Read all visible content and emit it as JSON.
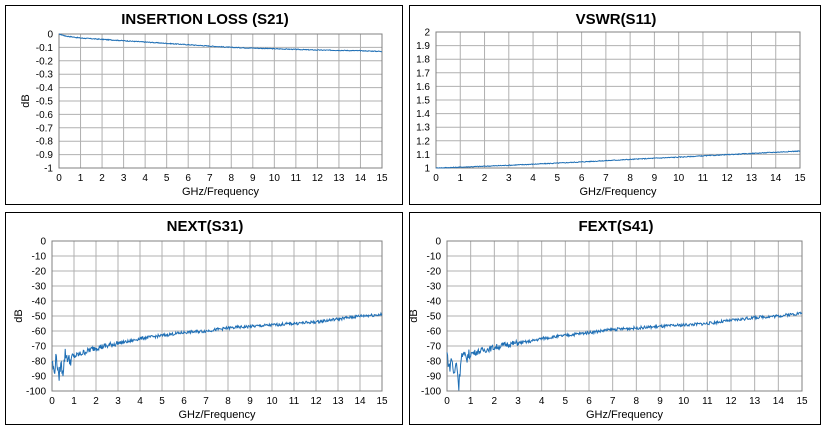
{
  "chart_data": [
    {
      "type": "line",
      "title": "INSERTION LOSS (S21)",
      "xlabel": "GHz/Frequency",
      "ylabel": "dB",
      "xlim": [
        0,
        15
      ],
      "ylim": [
        -1,
        0
      ],
      "xticks": [
        "0",
        "1",
        "2",
        "3",
        "4",
        "5",
        "6",
        "7",
        "8",
        "9",
        "10",
        "11",
        "12",
        "13",
        "14",
        "15"
      ],
      "yticks": [
        "0",
        "-0.1",
        "-0.2",
        "-0.3",
        "-0.4",
        "-0.5",
        "-0.6",
        "-0.7",
        "-0.8",
        "-0.9",
        "-1"
      ],
      "grid": true,
      "color": "#1f6fb5",
      "series": [
        {
          "x": [
            0,
            0.3,
            1,
            2,
            3,
            4,
            5,
            6,
            7,
            8,
            9,
            10,
            11,
            12,
            13,
            14,
            15
          ],
          "y": [
            0,
            -0.015,
            -0.03,
            -0.04,
            -0.05,
            -0.06,
            -0.07,
            -0.08,
            -0.09,
            -0.1,
            -0.105,
            -0.11,
            -0.115,
            -0.12,
            -0.122,
            -0.125,
            -0.13
          ]
        }
      ]
    },
    {
      "type": "line",
      "title": "VSWR(S11)",
      "xlabel": "GHz/Frequency",
      "ylabel": "",
      "xlim": [
        0,
        15
      ],
      "ylim": [
        1,
        2
      ],
      "xticks": [
        "0",
        "1",
        "2",
        "3",
        "4",
        "5",
        "6",
        "7",
        "8",
        "9",
        "10",
        "11",
        "12",
        "13",
        "14",
        "15"
      ],
      "yticks": [
        "2",
        "1.9",
        "1.8",
        "1.7",
        "1.6",
        "1.5",
        "1.4",
        "1.3",
        "1.2",
        "1.1",
        "1"
      ],
      "grid": true,
      "color": "#1f6fb5",
      "series": [
        {
          "x": [
            0,
            1,
            2,
            3,
            4,
            5,
            6,
            7,
            8,
            9,
            10,
            11,
            12,
            13,
            14,
            15
          ],
          "y": [
            1.0,
            1.006,
            1.013,
            1.02,
            1.028,
            1.036,
            1.045,
            1.054,
            1.063,
            1.072,
            1.08,
            1.089,
            1.098,
            1.107,
            1.116,
            1.125
          ]
        }
      ]
    },
    {
      "type": "line",
      "title": "NEXT(S31)",
      "xlabel": "GHz/Frequency",
      "ylabel": "dB",
      "xlim": [
        0,
        15
      ],
      "ylim": [
        -100,
        0
      ],
      "xticks": [
        "0",
        "1",
        "2",
        "3",
        "4",
        "5",
        "6",
        "7",
        "8",
        "9",
        "10",
        "11",
        "12",
        "13",
        "14",
        "15"
      ],
      "yticks": [
        "0",
        "-10",
        "-20",
        "-30",
        "-40",
        "-50",
        "-60",
        "-70",
        "-80",
        "-90",
        "-100"
      ],
      "grid": true,
      "color": "#1f6fb5",
      "series": [
        {
          "x": [
            0,
            0.1,
            0.2,
            0.3,
            0.4,
            0.5,
            0.6,
            0.8,
            1,
            1.5,
            2,
            2.5,
            3,
            3.5,
            4,
            4.5,
            5,
            6,
            7,
            8,
            9,
            10,
            11,
            12,
            13,
            14,
            15
          ],
          "y": [
            -80,
            -88,
            -76,
            -92,
            -82,
            -87,
            -75,
            -80,
            -77,
            -74,
            -71,
            -70,
            -68,
            -67,
            -65,
            -64,
            -63,
            -61,
            -60,
            -58,
            -57,
            -56,
            -55,
            -54,
            -52,
            -50,
            -49
          ]
        }
      ]
    },
    {
      "type": "line",
      "title": "FEXT(S41)",
      "xlabel": "GHz/Frequency",
      "ylabel": "dB",
      "xlim": [
        0,
        15
      ],
      "ylim": [
        -100,
        0
      ],
      "xticks": [
        "0",
        "1",
        "2",
        "3",
        "4",
        "5",
        "6",
        "7",
        "8",
        "9",
        "10",
        "11",
        "12",
        "13",
        "14",
        "15"
      ],
      "yticks": [
        "0",
        "-10",
        "-20",
        "-30",
        "-40",
        "-50",
        "-60",
        "-70",
        "-80",
        "-90",
        "-100"
      ],
      "grid": true,
      "color": "#1f6fb5",
      "series": [
        {
          "x": [
            0,
            0.1,
            0.2,
            0.3,
            0.4,
            0.5,
            0.6,
            0.8,
            1,
            1.5,
            2,
            2.5,
            3,
            3.5,
            4,
            4.5,
            5,
            6,
            7,
            8,
            9,
            10,
            11,
            12,
            13,
            14,
            15
          ],
          "y": [
            -75,
            -85,
            -78,
            -90,
            -80,
            -97,
            -76,
            -78,
            -75,
            -73,
            -71,
            -69,
            -68,
            -67,
            -65,
            -64,
            -63,
            -61,
            -59,
            -58,
            -57,
            -56,
            -55,
            -53,
            -51,
            -50,
            -48
          ]
        }
      ]
    }
  ]
}
